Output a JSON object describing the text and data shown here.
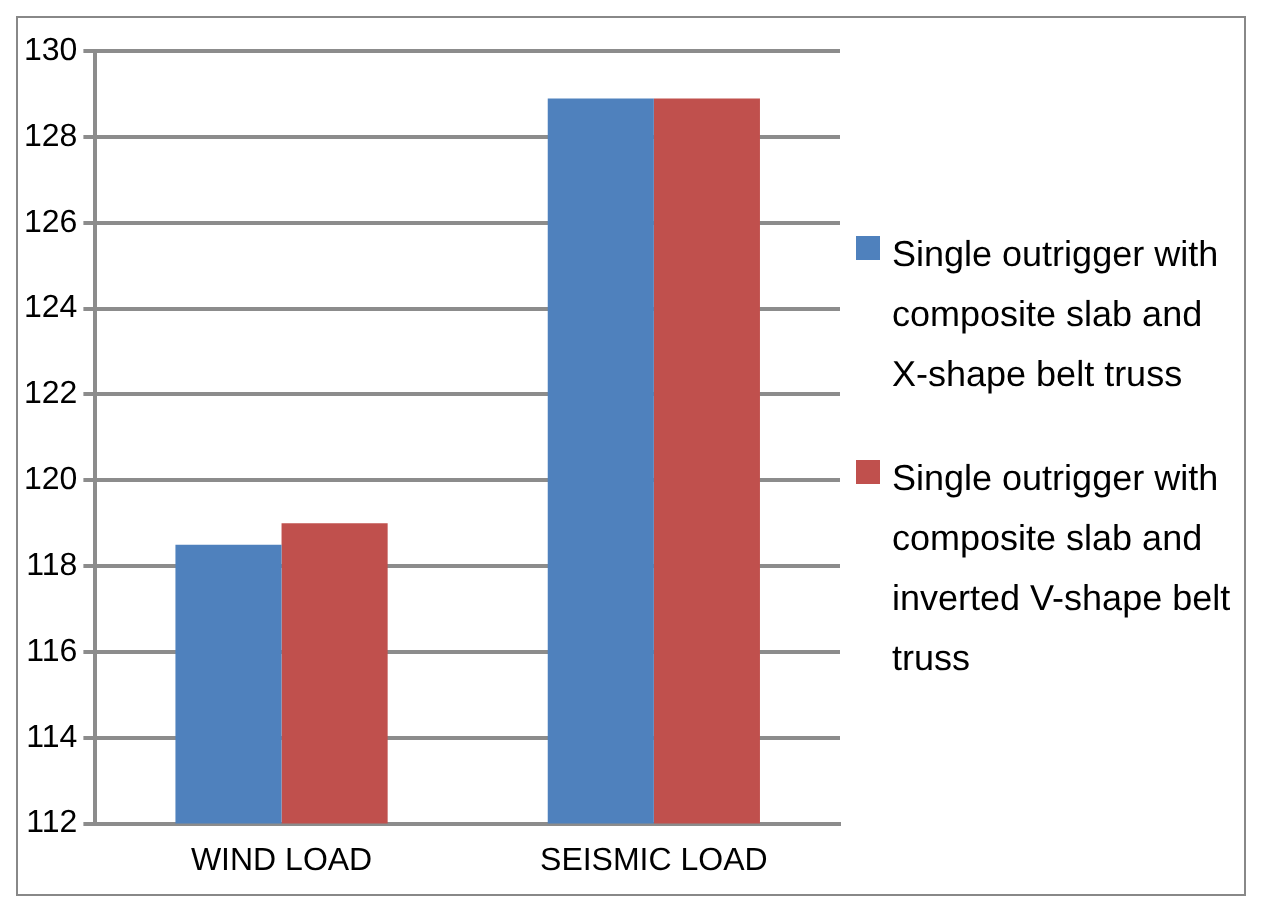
{
  "chart_data": {
    "type": "bar",
    "categories": [
      "WIND LOAD",
      "SEISMIC LOAD"
    ],
    "series": [
      {
        "name": "Single outrigger with composite slab and X-shape belt truss",
        "color": "#4f81bd",
        "values": [
          118.5,
          128.9
        ]
      },
      {
        "name": "Single outrigger with composite slab and inverted V-shape belt truss",
        "color": "#c0504d",
        "values": [
          119,
          128.9
        ]
      }
    ],
    "ylim": [
      112,
      130
    ],
    "yticks": [
      112,
      114,
      116,
      118,
      120,
      122,
      124,
      126,
      128,
      130
    ],
    "grid": "y",
    "legend": "right"
  }
}
